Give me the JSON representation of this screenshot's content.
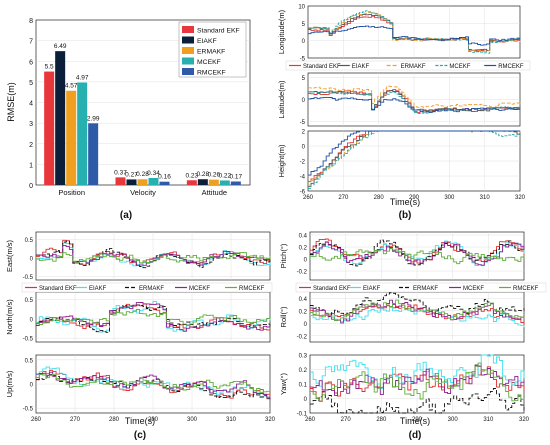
{
  "colors": {
    "standard_ekf": "#e8363d",
    "eiakf": "#0b1f3a",
    "ermakf": "#f0a020",
    "mcekf": "#27b0b0",
    "rmcekf": "#2f5aa8",
    "fig_ekf": "#e03a3a",
    "fig_eiakf": "#555555",
    "fig_ermakf": "#f0a030",
    "fig_mcekf": "#2aa7a7",
    "fig_rmcekf": "#1f4fa0",
    "c_ekf": "#e03030",
    "c_eiakf": "#40e0f0",
    "c_ermakf": "#111111",
    "c_mcekf": "#902090",
    "c_rmcekf": "#5fae3a"
  },
  "panel_labels": {
    "a": "(a)",
    "b": "(b)",
    "c": "(c)",
    "d": "(d)"
  },
  "legend_names": [
    "Standard EKF",
    "EIAKF",
    "ERMAKF",
    "MCEKF",
    "RMCEKF"
  ],
  "chart_data": [
    {
      "id": "a",
      "type": "bar",
      "ylabel": "RMSE(m)",
      "ylim": [
        0,
        8
      ],
      "yticks": [
        "0",
        "1",
        "2",
        "3",
        "4",
        "5",
        "6",
        "7",
        "8"
      ],
      "categories": [
        "Position",
        "Velocity",
        "Attitude"
      ],
      "legend_position": "top-right",
      "series": [
        {
          "name": "Standard EKF",
          "values": [
            5.5,
            0.37,
            0.23
          ],
          "labels": [
            "5.5",
            "0.37",
            "0.23"
          ]
        },
        {
          "name": "EIAKF",
          "values": [
            6.49,
            0.27,
            0.28
          ],
          "labels": [
            "6.49",
            "0.27",
            "0.28"
          ]
        },
        {
          "name": "ERMAKF",
          "values": [
            4.57,
            0.28,
            0.26
          ],
          "labels": [
            "4.57",
            "0.28",
            "0.26"
          ]
        },
        {
          "name": "MCEKF",
          "values": [
            4.97,
            0.34,
            0.22
          ],
          "labels": [
            "4.97",
            "0.34",
            "0.22"
          ]
        },
        {
          "name": "RMCEKF",
          "values": [
            2.99,
            0.16,
            0.17
          ],
          "labels": [
            "2.99",
            "0.16",
            "0.17"
          ]
        }
      ]
    },
    {
      "id": "b",
      "type": "line",
      "xlabel": "Time(s)",
      "xticks": [
        "260",
        "270",
        "280",
        "290",
        "300",
        "310",
        "320"
      ],
      "subplots": [
        {
          "ylabel": "Longitude(m)",
          "yticks": [
            "-5",
            "0",
            "5",
            "10"
          ],
          "ylim": [
            -5,
            10
          ]
        },
        {
          "ylabel": "Latitude(m)",
          "yticks": [
            "-5",
            "0",
            "5"
          ],
          "ylim": [
            -6,
            6
          ]
        },
        {
          "ylabel": "Height(m)",
          "yticks": [
            "-6",
            "-4",
            "-2",
            "0",
            "2"
          ],
          "ylim": [
            -6,
            2
          ]
        }
      ]
    },
    {
      "id": "c",
      "type": "line",
      "xlabel": "Time(s)",
      "xticks": [
        "260",
        "270",
        "280",
        "290",
        "300",
        "310",
        "320"
      ],
      "subplots": [
        {
          "ylabel": "East(m/s)",
          "yticks": [
            "-0.5",
            "0",
            "0.5"
          ],
          "ylim": [
            -0.6,
            0.7
          ]
        },
        {
          "ylabel": "North(m/s)",
          "yticks": [
            "-0.5",
            "0",
            "0.5"
          ],
          "ylim": [
            -0.6,
            0.7
          ]
        },
        {
          "ylabel": "Up(m/s)",
          "yticks": [
            "-0.5",
            "0",
            "0.5"
          ],
          "ylim": [
            -0.6,
            0.6
          ]
        }
      ]
    },
    {
      "id": "d",
      "type": "line",
      "xlabel": "Time(s)",
      "xticks": [
        "260",
        "270",
        "280",
        "290",
        "300",
        "310",
        "320"
      ],
      "subplots": [
        {
          "ylabel": "Pitch(°)",
          "yticks": [
            "-0.2",
            "0",
            "0.2",
            "0.4"
          ],
          "ylim": [
            -0.35,
            0.45
          ]
        },
        {
          "ylabel": "Roll(°)",
          "yticks": [
            "-0.2",
            "0",
            "0.2",
            "0.4"
          ],
          "ylim": [
            -0.3,
            0.5
          ]
        },
        {
          "ylabel": "Yaw(°)",
          "yticks": [
            "-0.1",
            "0",
            "0.1",
            "0.2",
            "0.3"
          ],
          "ylim": [
            -0.1,
            0.3
          ]
        }
      ]
    }
  ]
}
